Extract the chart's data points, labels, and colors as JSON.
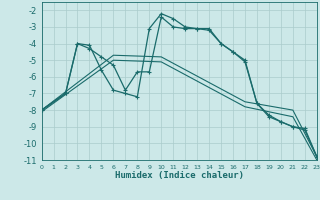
{
  "xlabel": "Humidex (Indice chaleur)",
  "xlim": [
    0,
    23
  ],
  "ylim": [
    -11,
    -1.5
  ],
  "yticks": [
    -2,
    -3,
    -4,
    -5,
    -6,
    -7,
    -8,
    -9,
    -10,
    -11
  ],
  "xticks": [
    0,
    1,
    2,
    3,
    4,
    5,
    6,
    7,
    8,
    9,
    10,
    11,
    12,
    13,
    14,
    15,
    16,
    17,
    18,
    19,
    20,
    21,
    22,
    23
  ],
  "bg_color": "#cce8e8",
  "grid_color": "#aacccc",
  "line_color": "#1a6b6b",
  "line1_x": [
    0,
    2,
    3,
    4,
    5,
    6,
    7,
    8,
    9,
    10,
    11,
    12,
    13,
    14,
    15,
    16,
    17,
    18,
    19,
    20,
    21,
    22,
    23
  ],
  "line1_y": [
    -8,
    -7,
    -4,
    -4.1,
    -5.6,
    -6.8,
    -7.0,
    -7.2,
    -3.1,
    -2.2,
    -2.5,
    -3.0,
    -3.1,
    -3.1,
    -4.0,
    -4.5,
    -5.0,
    -7.6,
    -8.3,
    -8.7,
    -9.0,
    -9.1,
    -10.8
  ],
  "line2_x": [
    0,
    2,
    3,
    4,
    5,
    6,
    7,
    8,
    9,
    10,
    11,
    12,
    13,
    14,
    15,
    16,
    17,
    18,
    19,
    20,
    21,
    22,
    23
  ],
  "line2_y": [
    -8,
    -7,
    -4,
    -4.3,
    -4.8,
    -5.3,
    -6.8,
    -5.7,
    -5.7,
    -2.4,
    -3.0,
    -3.1,
    -3.1,
    -3.2,
    -4.0,
    -4.5,
    -5.1,
    -7.6,
    -8.4,
    -8.7,
    -9.0,
    -9.2,
    -10.8
  ],
  "line3_x": [
    0,
    6,
    10,
    17,
    21,
    23
  ],
  "line3_y": [
    -8,
    -4.7,
    -4.8,
    -7.5,
    -8.0,
    -10.8
  ],
  "line4_x": [
    0,
    6,
    10,
    17,
    21,
    23
  ],
  "line4_y": [
    -8.1,
    -5.0,
    -5.1,
    -7.8,
    -8.4,
    -11.0
  ]
}
